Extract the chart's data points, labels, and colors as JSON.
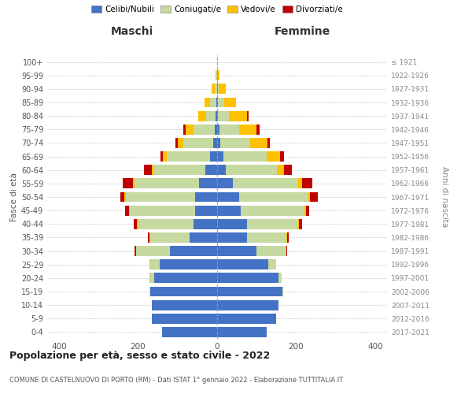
{
  "age_groups": [
    "0-4",
    "5-9",
    "10-14",
    "15-19",
    "20-24",
    "25-29",
    "30-34",
    "35-39",
    "40-44",
    "45-49",
    "50-54",
    "55-59",
    "60-64",
    "65-69",
    "70-74",
    "75-79",
    "80-84",
    "85-89",
    "90-94",
    "95-99",
    "100+"
  ],
  "birth_years": [
    "2017-2021",
    "2012-2016",
    "2007-2011",
    "2002-2006",
    "1997-2001",
    "1992-1996",
    "1987-1991",
    "1982-1986",
    "1977-1981",
    "1972-1976",
    "1967-1971",
    "1962-1966",
    "1957-1961",
    "1952-1956",
    "1947-1951",
    "1942-1946",
    "1937-1941",
    "1932-1936",
    "1927-1931",
    "1922-1926",
    "≤ 1921"
  ],
  "maschi": {
    "celibi": [
      140,
      165,
      165,
      170,
      160,
      145,
      120,
      70,
      60,
      55,
      55,
      45,
      30,
      18,
      10,
      5,
      3,
      2,
      0,
      0,
      0
    ],
    "coniugati": [
      0,
      0,
      0,
      2,
      10,
      25,
      85,
      100,
      140,
      165,
      175,
      165,
      130,
      110,
      75,
      55,
      25,
      15,
      5,
      1,
      0
    ],
    "vedovi": [
      0,
      0,
      0,
      0,
      2,
      2,
      0,
      2,
      3,
      3,
      5,
      3,
      5,
      10,
      15,
      20,
      20,
      15,
      8,
      2,
      0
    ],
    "divorziati": [
      0,
      0,
      0,
      0,
      0,
      0,
      5,
      3,
      8,
      10,
      10,
      25,
      20,
      5,
      5,
      5,
      0,
      0,
      0,
      0,
      0
    ]
  },
  "femmine": {
    "nubili": [
      125,
      150,
      155,
      165,
      155,
      130,
      100,
      75,
      75,
      60,
      55,
      40,
      22,
      15,
      8,
      5,
      2,
      2,
      1,
      0,
      0
    ],
    "coniugate": [
      0,
      0,
      0,
      2,
      8,
      20,
      75,
      100,
      130,
      160,
      175,
      165,
      130,
      110,
      75,
      50,
      28,
      15,
      2,
      0,
      0
    ],
    "vedove": [
      0,
      0,
      0,
      0,
      0,
      0,
      0,
      2,
      2,
      5,
      5,
      10,
      18,
      35,
      45,
      45,
      45,
      30,
      18,
      5,
      0
    ],
    "divorziate": [
      0,
      0,
      0,
      0,
      0,
      0,
      3,
      5,
      8,
      8,
      20,
      25,
      20,
      10,
      5,
      8,
      5,
      0,
      0,
      0,
      0
    ]
  },
  "colors": {
    "celibi_nubili": "#4472c4",
    "coniugati": "#c5d9a0",
    "vedovi": "#ffc000",
    "divorziati": "#c00000"
  },
  "xlim": 430,
  "title": "Popolazione per età, sesso e stato civile - 2022",
  "subtitle": "COMUNE DI CASTELNUOVO DI PORTO (RM) - Dati ISTAT 1° gennaio 2022 - Elaborazione TUTTITALIA.IT",
  "ylabel_left": "Fasce di età",
  "ylabel_right": "Anni di nascita",
  "xlabel_left": "Maschi",
  "xlabel_right": "Femmine",
  "bg_color": "#ffffff",
  "grid_color": "#cccccc",
  "bar_height": 0.75
}
